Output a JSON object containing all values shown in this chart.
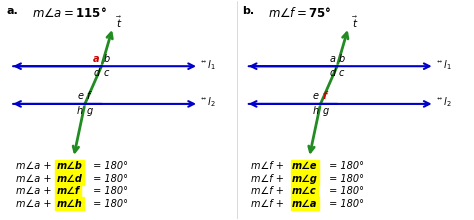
{
  "label_a": "a.",
  "label_b": "b.",
  "title_a": "m∠a = 115°",
  "title_b": "m∠f = 75°",
  "left_equations_prefix": "m∠a + ",
  "right_equations_prefix": "m∠f + ",
  "left_highlights": [
    "b",
    "d",
    "f",
    "h"
  ],
  "right_highlights": [
    "e",
    "g",
    "c",
    "a"
  ],
  "suffix": " = 180°",
  "arrow_color": "#0000cc",
  "transversal_color": "#228B22",
  "highlight_bg": "#ffff00",
  "red_color": "#cc0000",
  "background": "#ffffff"
}
